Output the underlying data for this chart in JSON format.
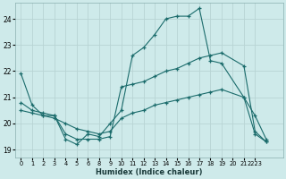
{
  "xlabel": "Humidex (Indice chaleur)",
  "bg_color": "#ceeaea",
  "grid_color": "#b8d4d4",
  "line_color": "#1a6b6b",
  "xlim": [
    -0.5,
    23.5
  ],
  "ylim": [
    18.7,
    24.6
  ],
  "yticks": [
    19,
    20,
    21,
    22,
    23,
    24
  ],
  "xtick_labels": [
    "0",
    "1",
    "2",
    "3",
    "4",
    "5",
    "6",
    "8",
    "9",
    "10",
    "11",
    "12",
    "13",
    "14",
    "15",
    "16",
    "17",
    "18",
    "19",
    "20",
    "21",
    "2223"
  ],
  "xtick_pos": [
    0,
    1,
    2,
    3,
    4,
    5,
    6,
    7,
    8,
    9,
    10,
    11,
    12,
    13,
    14,
    15,
    16,
    17,
    18,
    19,
    20,
    21
  ],
  "line1_x": [
    0,
    1,
    2,
    3,
    4,
    5,
    6,
    7,
    8,
    9,
    10,
    11,
    12,
    13,
    14,
    15,
    16,
    17,
    18,
    20,
    21,
    22,
    23
  ],
  "line1_y": [
    21.9,
    20.7,
    20.3,
    20.3,
    19.4,
    19.2,
    19.6,
    19.5,
    20.0,
    20.5,
    22.6,
    22.9,
    23.4,
    24.0,
    24.1,
    24.1,
    24.4,
    22.4,
    22.3,
    21.0,
    20.3,
    19.4,
    null
  ],
  "line2_x": [
    0,
    1,
    2,
    3,
    4,
    5,
    6,
    7,
    8,
    9,
    10,
    11,
    12,
    13,
    14,
    15,
    16,
    17,
    18,
    20,
    21,
    22,
    23
  ],
  "line2_y": [
    20.8,
    20.5,
    20.4,
    20.3,
    19.6,
    19.4,
    19.4,
    19.4,
    19.5,
    21.4,
    21.5,
    21.6,
    21.8,
    22.0,
    22.1,
    22.3,
    22.5,
    22.6,
    22.7,
    22.2,
    19.7,
    19.3,
    null
  ],
  "line3_x": [
    0,
    1,
    2,
    3,
    4,
    5,
    6,
    7,
    8,
    9,
    10,
    11,
    12,
    13,
    14,
    15,
    16,
    17,
    18,
    20,
    21,
    22,
    23
  ],
  "line3_y": [
    20.5,
    20.4,
    20.3,
    20.2,
    20.0,
    19.8,
    19.7,
    19.6,
    19.7,
    20.2,
    20.4,
    20.5,
    20.7,
    20.8,
    20.9,
    21.0,
    21.1,
    21.2,
    21.3,
    21.0,
    19.6,
    19.3,
    null
  ]
}
